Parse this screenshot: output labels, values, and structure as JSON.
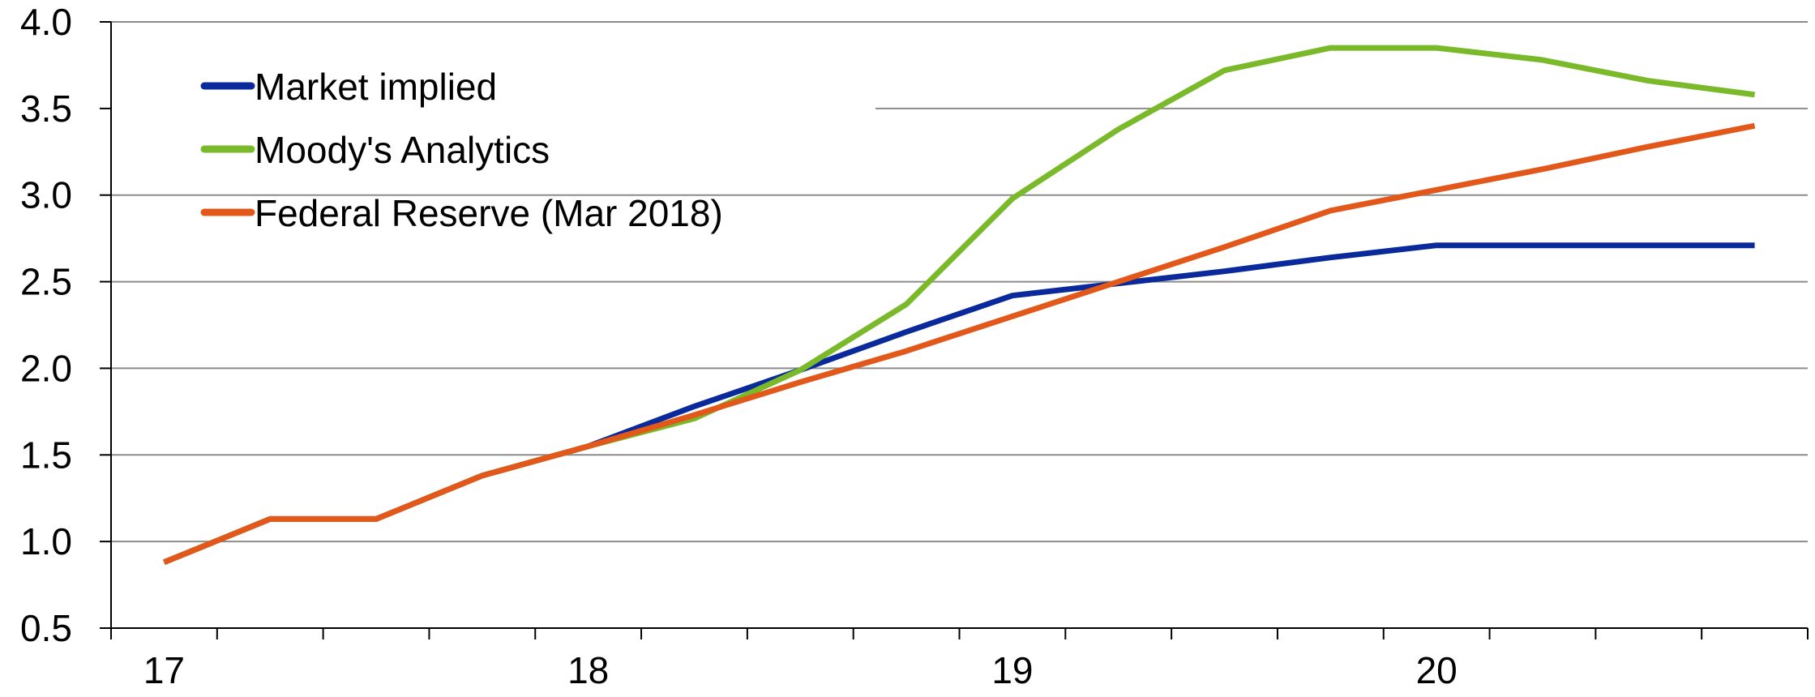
{
  "chart_data": {
    "type": "line",
    "x_ticks": [
      "17",
      "18",
      "19",
      "20"
    ],
    "x": [
      17.0,
      17.25,
      17.5,
      17.75,
      18.0,
      18.25,
      18.5,
      18.75,
      19.0,
      19.25,
      19.5,
      19.75,
      20.0,
      20.25,
      20.5,
      20.75
    ],
    "ylim": [
      0.5,
      4.0
    ],
    "y_ticks": [
      "0.5",
      "1.0",
      "1.5",
      "2.0",
      "2.5",
      "3.0",
      "3.5",
      "4.0"
    ],
    "grid": true,
    "legend_position": "top-left",
    "series": [
      {
        "name": "Market implied",
        "color": "#0a2a9c",
        "values": [
          0.88,
          1.13,
          1.13,
          1.38,
          1.55,
          1.78,
          1.99,
          2.21,
          2.42,
          2.49,
          2.56,
          2.64,
          2.71,
          2.71,
          2.71,
          2.71
        ]
      },
      {
        "name": "Moody's Analytics",
        "color": "#7ab929",
        "values": [
          0.88,
          1.13,
          1.13,
          1.38,
          1.55,
          1.71,
          1.99,
          2.37,
          2.98,
          3.38,
          3.72,
          3.85,
          3.85,
          3.78,
          3.66,
          3.58
        ]
      },
      {
        "name": "Federal Reserve (Mar 2018)",
        "color": "#e2581b",
        "values": [
          0.88,
          1.13,
          1.13,
          1.38,
          1.55,
          1.73,
          1.92,
          2.1,
          2.3,
          2.5,
          2.7,
          2.91,
          3.03,
          3.15,
          3.28,
          3.4
        ]
      }
    ]
  }
}
